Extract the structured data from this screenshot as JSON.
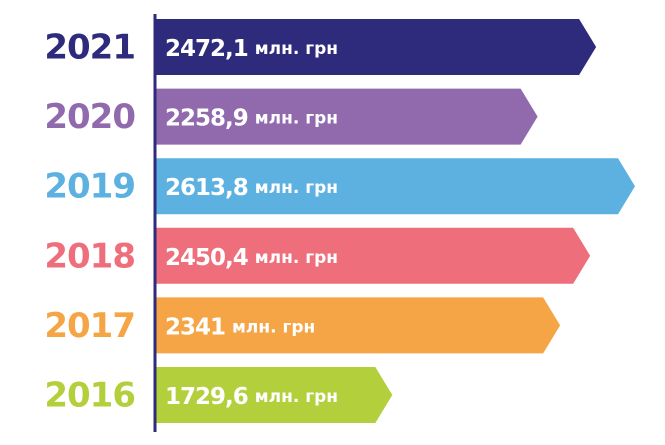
{
  "chart_data": {
    "type": "arrow-bar",
    "categories": [
      "2021",
      "2020",
      "2019",
      "2018",
      "2017",
      "2016"
    ],
    "values": [
      2472.1,
      2258.9,
      2613.8,
      2450.4,
      2341,
      1729.6
    ],
    "value_labels": [
      "2472,1",
      "2258,9",
      "2613,8",
      "2450,4",
      "2341",
      "1729,6"
    ],
    "unit": "млн. грн",
    "colors": [
      "#2e2a7c",
      "#916aae",
      "#5cb1e1",
      "#ee6f7b",
      "#f6a546",
      "#b3cf3c"
    ],
    "axis_color": "#2e2a7c"
  }
}
